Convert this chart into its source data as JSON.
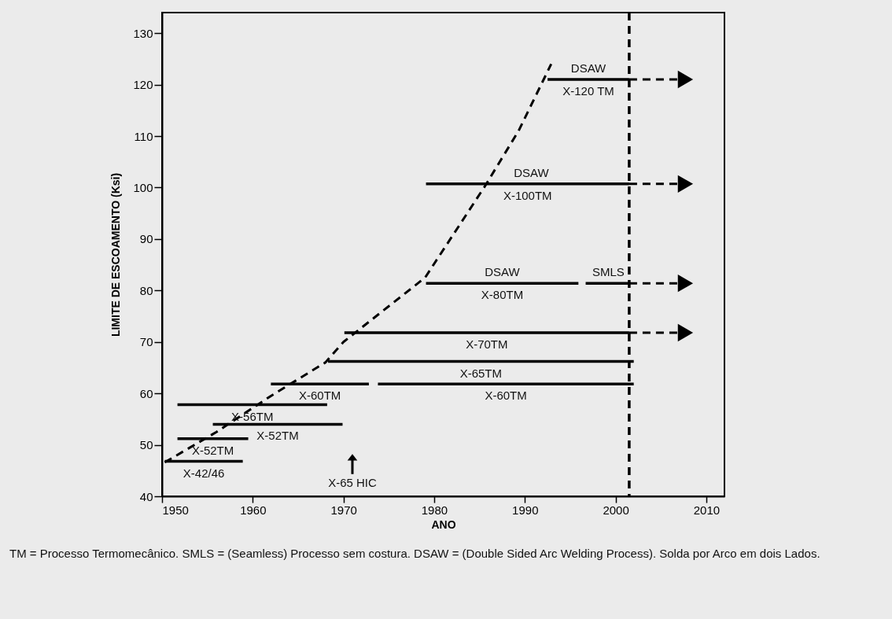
{
  "chart_data": {
    "type": "line",
    "xlabel": "ANO",
    "ylabel": "LIMITE DE ESCOAMENTO (Ksi)",
    "xlim": [
      1950,
      2012
    ],
    "xticks": [
      1950,
      1960,
      1970,
      1980,
      1990,
      2000,
      2010
    ],
    "ylim": [
      40,
      134
    ],
    "yticks": [
      40,
      50,
      60,
      70,
      80,
      90,
      100,
      110,
      120,
      130
    ],
    "grid": false,
    "line_style": "solid",
    "series": [
      {
        "color": "#000000",
        "line_style": "dashed",
        "x": [
          1950.3,
          1956,
          1962,
          1968,
          1970,
          1979,
          1985.5,
          1989.3,
          1992.9
        ],
        "values": [
          46.6,
          52.5,
          59.5,
          66,
          70,
          82.5,
          100,
          111,
          124
        ]
      },
      {
        "name": "X-120 TM",
        "color": "#000000",
        "x": [
          1992.5,
          2001.5
        ],
        "values": [
          121,
          121
        ]
      },
      {
        "name": "X-100TM",
        "color": "#000000",
        "x": [
          1979.1,
          2001.5
        ],
        "values": [
          100.7,
          100.7
        ]
      },
      {
        "name": "X-80TM",
        "color": "#000000",
        "x": [
          1979.1,
          1995.9
        ],
        "values": [
          81.4,
          81.4
        ]
      },
      {
        "color": "#000000",
        "x": [
          1996.7,
          2001.5
        ],
        "values": [
          81.4,
          81.4
        ]
      },
      {
        "name": "X-70TM",
        "color": "#000000",
        "x": [
          1970.1,
          2001.5
        ],
        "values": [
          71.8,
          71.8
        ]
      },
      {
        "name": "X-65TM",
        "color": "#000000",
        "x": [
          1968.3,
          2002
        ],
        "values": [
          66.2,
          66.2
        ]
      },
      {
        "name": "X-60TM",
        "color": "#000000",
        "x": [
          1962,
          1972.8
        ],
        "values": [
          61.8,
          61.8
        ]
      },
      {
        "name": "X-60TM",
        "color": "#000000",
        "x": [
          1973.8,
          2002
        ],
        "values": [
          61.8,
          61.8
        ]
      },
      {
        "name": "X-56TM",
        "color": "#000000",
        "x": [
          1951.7,
          1968.2
        ],
        "values": [
          57.8,
          57.8
        ]
      },
      {
        "name": "X-52TM",
        "color": "#000000",
        "x": [
          1955.6,
          1969.9
        ],
        "values": [
          54,
          54
        ]
      },
      {
        "name": "X-52TM",
        "color": "#000000",
        "x": [
          1951.7,
          1959.5
        ],
        "values": [
          51.2,
          51.2
        ]
      },
      {
        "name": "X-42/46",
        "color": "#000000",
        "x": [
          1950.3,
          1958.9
        ],
        "values": [
          46.8,
          46.8
        ]
      },
      {
        "color": "#000000",
        "line_style": "dashed",
        "marker": "triangle",
        "x": [
          2001.5,
          2007.7
        ],
        "values": [
          121,
          121
        ]
      },
      {
        "color": "#000000",
        "line_style": "dashed",
        "marker": "triangle",
        "x": [
          2001.5,
          2007.7
        ],
        "values": [
          100.7,
          100.7
        ]
      },
      {
        "color": "#000000",
        "line_style": "dashed",
        "marker": "triangle",
        "x": [
          2001.5,
          2007.7
        ],
        "values": [
          81.4,
          81.4
        ]
      },
      {
        "color": "#000000",
        "line_style": "dashed",
        "marker": "triangle",
        "x": [
          2001.5,
          2007.7
        ],
        "values": [
          71.8,
          71.8
        ]
      }
    ],
    "ref_lines": [
      {
        "axis": "x",
        "value": 2001.5,
        "color": "#000000",
        "line_style": "dashed"
      }
    ],
    "annotations": [
      {
        "text": "DSAW",
        "x": 1997,
        "y": 121
      },
      {
        "text": "DSAW",
        "x": 1990.7,
        "y": 100.7
      },
      {
        "text": "DSAW",
        "x": 1987.5,
        "y": 81.4
      },
      {
        "text": "SMLS",
        "x": 1999.2,
        "y": 81.4
      },
      "X-65 HIC",
      "TM = Processo Termomecânico. SMLS = (Seamless) Processo sem costura. DSAW = (Double Sided Arc Welding Process). Solda por Arco em dois Lados."
    ]
  }
}
